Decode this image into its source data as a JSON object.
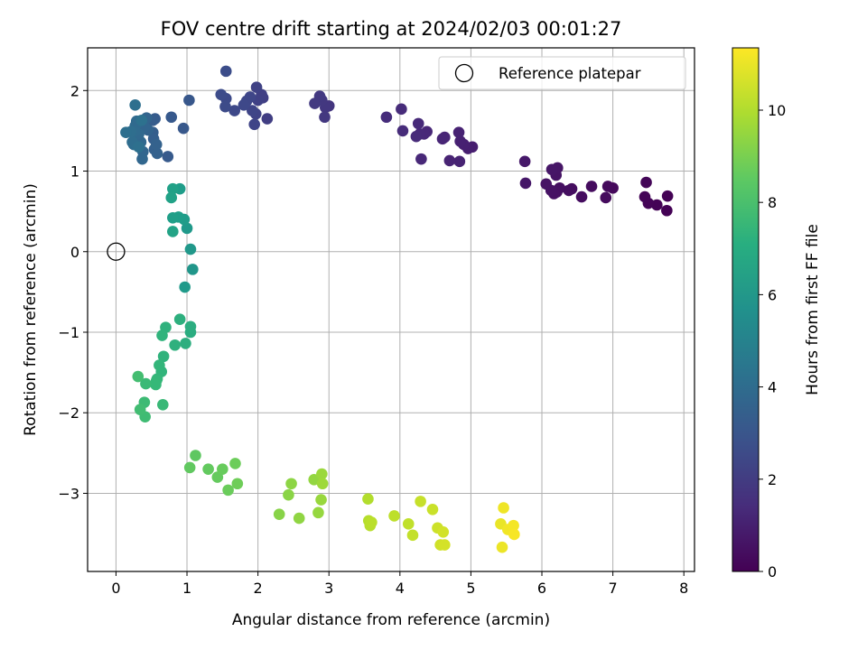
{
  "chart_data": {
    "type": "scatter",
    "title": "FOV centre drift starting at 2024/02/03 00:01:27",
    "xlabel": "Angular distance from reference (arcmin)",
    "ylabel": "Rotation from reference (arcmin)",
    "xlim": [
      -0.4,
      8.15
    ],
    "ylim": [
      -3.97,
      2.53
    ],
    "xticks": [
      0,
      1,
      2,
      3,
      4,
      5,
      6,
      7,
      8
    ],
    "yticks": [
      -3,
      -2,
      -1,
      0,
      1,
      2
    ],
    "grid": true,
    "legend": {
      "position": "top-right",
      "entries": [
        "Reference platepar"
      ]
    },
    "reference_point": {
      "x": 0,
      "y": 0,
      "label": "Reference platepar"
    },
    "colorbar": {
      "label": "Hours from first FF file",
      "min": 0,
      "max": 11.35,
      "ticks": [
        0,
        2,
        4,
        6,
        8,
        10
      ],
      "colormap": "viridis"
    },
    "series": [
      {
        "color_by": "hours",
        "points": [
          [
            7.76,
            0.51,
            0.02
          ],
          [
            7.77,
            0.69,
            0.05
          ],
          [
            7.62,
            0.58,
            0.08
          ],
          [
            7.5,
            0.6,
            0.1
          ],
          [
            7.45,
            0.68,
            0.12
          ],
          [
            7.47,
            0.86,
            0.15
          ],
          [
            7.0,
            0.79,
            0.25
          ],
          [
            6.93,
            0.81,
            0.28
          ],
          [
            6.9,
            0.67,
            0.31
          ],
          [
            6.7,
            0.81,
            0.34
          ],
          [
            6.56,
            0.68,
            0.37
          ],
          [
            6.42,
            0.78,
            0.4
          ],
          [
            6.38,
            0.76,
            0.43
          ],
          [
            6.25,
            0.79,
            0.46
          ],
          [
            6.21,
            0.74,
            0.49
          ],
          [
            6.17,
            0.72,
            0.52
          ],
          [
            6.13,
            0.76,
            0.55
          ],
          [
            6.06,
            0.84,
            0.58
          ],
          [
            6.2,
            0.95,
            0.61
          ],
          [
            6.22,
            1.04,
            0.64
          ],
          [
            6.14,
            1.02,
            0.67
          ],
          [
            5.77,
            0.85,
            0.7
          ],
          [
            5.76,
            1.12,
            0.73
          ],
          [
            5.02,
            1.3,
            0.95
          ],
          [
            4.96,
            1.28,
            0.98
          ],
          [
            4.9,
            1.33,
            1.01
          ],
          [
            4.85,
            1.37,
            1.04
          ],
          [
            4.83,
            1.48,
            1.07
          ],
          [
            4.84,
            1.12,
            1.1
          ],
          [
            4.7,
            1.13,
            1.13
          ],
          [
            4.63,
            1.42,
            1.16
          ],
          [
            4.6,
            1.4,
            1.19
          ],
          [
            4.38,
            1.49,
            1.22
          ],
          [
            4.34,
            1.46,
            1.25
          ],
          [
            4.3,
            1.15,
            1.28
          ],
          [
            4.28,
            1.46,
            1.31
          ],
          [
            4.26,
            1.59,
            1.34
          ],
          [
            4.23,
            1.43,
            1.37
          ],
          [
            4.04,
            1.5,
            1.4
          ],
          [
            4.02,
            1.77,
            1.43
          ],
          [
            3.81,
            1.67,
            1.46
          ],
          [
            3.0,
            1.81,
            1.8
          ],
          [
            2.95,
            1.79,
            1.83
          ],
          [
            2.9,
            1.88,
            1.86
          ],
          [
            2.94,
            1.67,
            1.89
          ],
          [
            2.87,
            1.93,
            1.92
          ],
          [
            2.8,
            1.84,
            1.95
          ],
          [
            2.13,
            1.65,
            2.1
          ],
          [
            2.07,
            1.91,
            2.14
          ],
          [
            2.05,
            1.95,
            2.18
          ],
          [
            2.0,
            1.88,
            2.22
          ],
          [
            1.98,
            2.04,
            2.26
          ],
          [
            1.97,
            1.71,
            2.3
          ],
          [
            1.95,
            1.58,
            2.34
          ],
          [
            1.92,
            1.75,
            2.38
          ],
          [
            1.89,
            1.92,
            2.42
          ],
          [
            1.84,
            1.87,
            2.46
          ],
          [
            1.8,
            1.82,
            2.5
          ],
          [
            1.67,
            1.75,
            2.54
          ],
          [
            1.55,
            1.9,
            2.58
          ],
          [
            1.54,
            1.8,
            2.62
          ],
          [
            1.48,
            1.95,
            2.66
          ],
          [
            1.55,
            2.24,
            2.7
          ],
          [
            1.03,
            1.88,
            3.1
          ],
          [
            0.95,
            1.53,
            3.14
          ],
          [
            0.78,
            1.67,
            3.18
          ],
          [
            0.73,
            1.18,
            3.22
          ],
          [
            0.55,
            1.65,
            3.26
          ],
          [
            0.52,
            1.63,
            3.3
          ],
          [
            0.48,
            1.63,
            3.34
          ],
          [
            0.52,
            1.48,
            3.38
          ],
          [
            0.53,
            1.4,
            3.42
          ],
          [
            0.54,
            1.27,
            3.46
          ],
          [
            0.58,
            1.22,
            3.5
          ],
          [
            0.57,
            1.33,
            3.54
          ],
          [
            0.45,
            1.51,
            3.58
          ],
          [
            0.43,
            1.66,
            3.62
          ],
          [
            0.4,
            1.55,
            3.66
          ],
          [
            0.38,
            1.24,
            3.7
          ],
          [
            0.37,
            1.15,
            3.74
          ],
          [
            0.35,
            1.36,
            3.78
          ],
          [
            0.32,
            1.46,
            3.82
          ],
          [
            0.29,
            1.62,
            3.86
          ],
          [
            0.27,
            1.56,
            3.9
          ],
          [
            0.26,
            1.49,
            3.94
          ],
          [
            0.25,
            1.33,
            3.98
          ],
          [
            0.23,
            1.36,
            4.02
          ],
          [
            0.21,
            1.49,
            4.06
          ],
          [
            0.27,
            1.82,
            4.1
          ],
          [
            0.14,
            1.48,
            4.14
          ],
          [
            0.32,
            1.3,
            4.18
          ],
          [
            0.36,
            1.63,
            4.22
          ],
          [
            1.08,
            -0.22,
            5.95
          ],
          [
            1.05,
            0.03,
            6.02
          ],
          [
            1.0,
            0.29,
            6.08
          ],
          [
            0.97,
            -0.44,
            6.14
          ],
          [
            0.96,
            0.4,
            6.2
          ],
          [
            0.9,
            0.78,
            6.26
          ],
          [
            0.88,
            0.43,
            6.32
          ],
          [
            0.8,
            0.42,
            6.38
          ],
          [
            0.8,
            0.78,
            6.44
          ],
          [
            0.78,
            0.67,
            6.5
          ],
          [
            0.8,
            0.25,
            6.56
          ],
          [
            1.05,
            -1.0,
            7.0
          ],
          [
            1.05,
            -0.93,
            7.05
          ],
          [
            0.98,
            -1.14,
            7.1
          ],
          [
            0.9,
            -0.84,
            7.15
          ],
          [
            0.83,
            -1.16,
            7.2
          ],
          [
            0.7,
            -0.94,
            7.25
          ],
          [
            0.67,
            -1.3,
            7.3
          ],
          [
            0.65,
            -1.04,
            7.35
          ],
          [
            0.64,
            -1.49,
            7.4
          ],
          [
            0.61,
            -1.41,
            7.45
          ],
          [
            0.58,
            -1.58,
            7.5
          ],
          [
            0.57,
            -1.6,
            7.55
          ],
          [
            0.56,
            -1.65,
            7.6
          ],
          [
            0.66,
            -1.9,
            7.65
          ],
          [
            0.42,
            -1.64,
            7.7
          ],
          [
            0.4,
            -1.87,
            7.75
          ],
          [
            0.41,
            -2.05,
            7.8
          ],
          [
            0.34,
            -1.96,
            7.85
          ],
          [
            0.31,
            -1.55,
            7.9
          ],
          [
            1.12,
            -2.53,
            8.5
          ],
          [
            1.04,
            -2.68,
            8.55
          ],
          [
            1.3,
            -2.7,
            8.6
          ],
          [
            1.43,
            -2.8,
            8.65
          ],
          [
            1.5,
            -2.7,
            8.7
          ],
          [
            1.58,
            -2.96,
            8.75
          ],
          [
            1.68,
            -2.63,
            8.8
          ],
          [
            1.71,
            -2.88,
            8.85
          ],
          [
            2.3,
            -3.26,
            9.3
          ],
          [
            2.43,
            -3.02,
            9.35
          ],
          [
            2.47,
            -2.88,
            9.4
          ],
          [
            2.58,
            -3.31,
            9.45
          ],
          [
            2.79,
            -2.83,
            9.5
          ],
          [
            2.85,
            -3.24,
            9.55
          ],
          [
            2.89,
            -3.08,
            9.6
          ],
          [
            2.9,
            -2.76,
            9.65
          ],
          [
            2.91,
            -2.88,
            9.7
          ],
          [
            3.55,
            -3.07,
            10.05
          ],
          [
            3.56,
            -3.34,
            10.1
          ],
          [
            3.58,
            -3.4,
            10.15
          ],
          [
            3.6,
            -3.36,
            10.2
          ],
          [
            3.92,
            -3.28,
            10.25
          ],
          [
            4.12,
            -3.38,
            10.3
          ],
          [
            4.18,
            -3.52,
            10.35
          ],
          [
            4.29,
            -3.1,
            10.4
          ],
          [
            4.46,
            -3.2,
            10.45
          ],
          [
            4.53,
            -3.43,
            10.5
          ],
          [
            4.57,
            -3.64,
            10.55
          ],
          [
            4.61,
            -3.48,
            10.6
          ],
          [
            4.63,
            -3.64,
            10.65
          ],
          [
            5.42,
            -3.38,
            11.0
          ],
          [
            5.44,
            -3.67,
            11.05
          ],
          [
            5.46,
            -3.18,
            11.1
          ],
          [
            5.52,
            -3.45,
            11.15
          ],
          [
            5.6,
            -3.4,
            11.2
          ],
          [
            5.61,
            -3.51,
            11.25
          ]
        ]
      }
    ]
  }
}
